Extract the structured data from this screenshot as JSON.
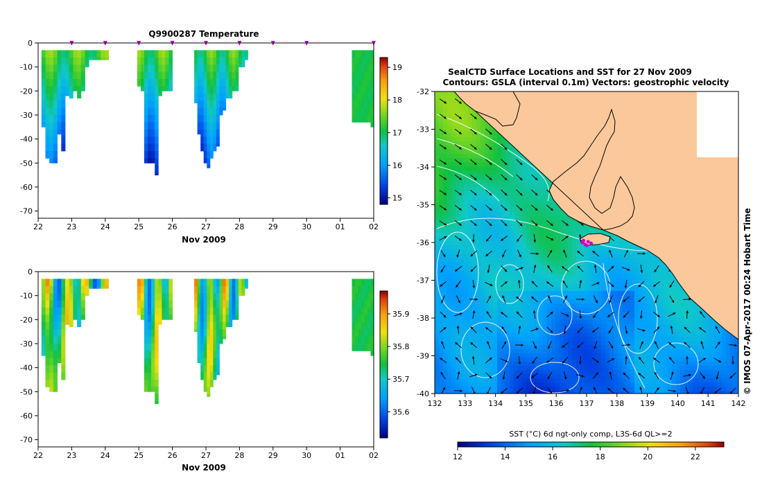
{
  "colors": {
    "frame": "#000000",
    "land": "#fbc89c",
    "contour": "#ffffff",
    "deploy_marker": "#cc00cc"
  },
  "credit": "© IMOS 07-Apr-2017 00:24 Hobart Time",
  "profiles": {
    "x_ticks": [
      "22",
      "23",
      "24",
      "25",
      "26",
      "27",
      "28",
      "29",
      "30",
      "01",
      "02"
    ],
    "x_label": "Nov 2009",
    "depth_ticks": [
      0,
      -10,
      -20,
      -30,
      -40,
      -50,
      -60,
      -70
    ],
    "depth_range": [
      -73,
      0
    ],
    "day_range": [
      0,
      10
    ],
    "surface_marker_days": [
      1,
      2,
      3,
      4,
      5,
      6,
      7,
      8,
      10
    ],
    "dive_groups": [
      {
        "start": 0.1,
        "end": 2.1,
        "max_depths": [
          35,
          48,
          50,
          50,
          38,
          45,
          22,
          23,
          20,
          23,
          20,
          10,
          7,
          7,
          7,
          7,
          7
        ]
      },
      {
        "start": 2.95,
        "end": 4.0,
        "max_depths": [
          18,
          20,
          50,
          50,
          50,
          55,
          22,
          20,
          20,
          20
        ]
      },
      {
        "start": 4.65,
        "end": 6.25,
        "max_depths": [
          25,
          38,
          45,
          50,
          52,
          48,
          45,
          43,
          30,
          28,
          23,
          23,
          20,
          20,
          10,
          10,
          7
        ]
      },
      {
        "start": 9.35,
        "end": 10.0,
        "max_depths": [
          33,
          33,
          33,
          33,
          33,
          33,
          35
        ]
      }
    ],
    "panels": [
      {
        "key": "temperature",
        "title": "Q9900287  Temperature",
        "colorbar_ticks": [
          15,
          16,
          17,
          18,
          19
        ],
        "value_range": [
          14.8,
          19.3
        ]
      },
      {
        "key": "salinity",
        "title": "",
        "colorbar_ticks": [
          35.6,
          35.7,
          35.8,
          35.9
        ],
        "value_range": [
          35.52,
          35.97
        ]
      }
    ]
  },
  "map": {
    "title_line1": "SealCTD Surface Locations and SST for 27 Nov 2009",
    "title_line2": "Contours: GSLA (interval 0.1m) Vectors: geostrophic velocity",
    "lon_ticks": [
      132,
      133,
      134,
      135,
      136,
      137,
      138,
      139,
      140,
      141,
      142
    ],
    "lat_ticks": [
      -32,
      -33,
      -34,
      -35,
      -36,
      -37,
      -38,
      -39,
      -40
    ],
    "lon_range": [
      132,
      142
    ],
    "lat_range": [
      -40,
      -32
    ],
    "seal_locations": [
      [
        136.85,
        -36.0
      ],
      [
        136.95,
        -36.05
      ],
      [
        137.05,
        -35.98
      ],
      [
        137.15,
        -36.02
      ],
      [
        136.9,
        -35.95
      ],
      [
        137.0,
        -36.08
      ]
    ],
    "colorbar": {
      "label": "SST (°C) 6d ngt-only comp, L3S-6d QL>=2",
      "ticks": [
        12,
        14,
        16,
        18,
        20,
        22
      ],
      "range": [
        12,
        23.2
      ]
    }
  }
}
